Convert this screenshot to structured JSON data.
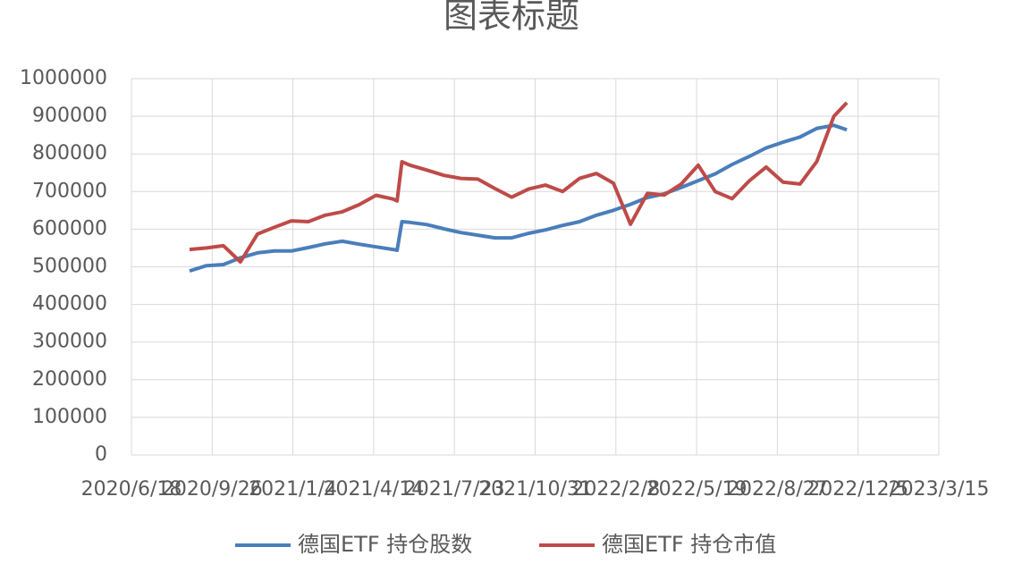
{
  "chart_data": {
    "type": "line",
    "title": "图表标题",
    "x": [
      "2020/8/29",
      "2020/9/19",
      "2020/10/10",
      "2020/10/31",
      "2020/11/21",
      "2020/12/12",
      "2021/1/2",
      "2021/1/23",
      "2021/2/13",
      "2021/3/6",
      "2021/3/27",
      "2021/4/17",
      "2021/5/8",
      "2021/5/13",
      "2021/5/19",
      "2021/5/29",
      "2021/6/19",
      "2021/7/10",
      "2021/7/31",
      "2021/8/21",
      "2021/9/11",
      "2021/10/2",
      "2021/10/23",
      "2021/11/13",
      "2021/12/4",
      "2021/12/25",
      "2022/1/15",
      "2022/2/5",
      "2022/2/26",
      "2022/3/19",
      "2022/4/9",
      "2022/4/30",
      "2022/5/21",
      "2022/6/11",
      "2022/7/2",
      "2022/7/23",
      "2022/8/13",
      "2022/9/3",
      "2022/9/24",
      "2022/10/15",
      "2022/11/5",
      "2022/11/21"
    ],
    "series": [
      {
        "name": "德国ETF 持仓股数",
        "color": "#4a7ebb",
        "values": [
          489000,
          503000,
          506000,
          524000,
          537000,
          542000,
          542000,
          551000,
          561000,
          568000,
          560000,
          553000,
          546000,
          544000,
          620000,
          618000,
          612000,
          601000,
          591000,
          584000,
          577000,
          577000,
          589000,
          598000,
          610000,
          620000,
          637000,
          650000,
          666000,
          684000,
          694000,
          711000,
          729000,
          747000,
          772000,
          793000,
          816000,
          831000,
          845000,
          868000,
          876000,
          864000
        ]
      },
      {
        "name": "德国ETF 持仓市值",
        "color": "#be4b48",
        "values": [
          546000,
          550000,
          556000,
          513000,
          587000,
          605000,
          622000,
          620000,
          637000,
          646000,
          665000,
          690000,
          680000,
          675000,
          779000,
          770000,
          757000,
          743000,
          735000,
          733000,
          708000,
          685000,
          707000,
          717000,
          700000,
          735000,
          748000,
          722000,
          613000,
          695000,
          691000,
          720000,
          770000,
          700000,
          681000,
          728000,
          765000,
          725000,
          720000,
          780000,
          900000,
          936000
        ]
      }
    ],
    "xlim": [
      "2020/6/18",
      "2023/3/15"
    ],
    "xticks": [
      "2020/6/18",
      "2020/9/26",
      "2021/1/4",
      "2021/4/14",
      "2021/7/23",
      "2021/10/31",
      "2022/2/8",
      "2022/5/19",
      "2022/8/27",
      "2022/12/5",
      "2023/3/15"
    ],
    "ylim": [
      0,
      1000000
    ],
    "yticks": [
      0,
      100000,
      200000,
      300000,
      400000,
      500000,
      600000,
      700000,
      800000,
      900000,
      1000000
    ],
    "grid": true,
    "legend": "bottom"
  }
}
